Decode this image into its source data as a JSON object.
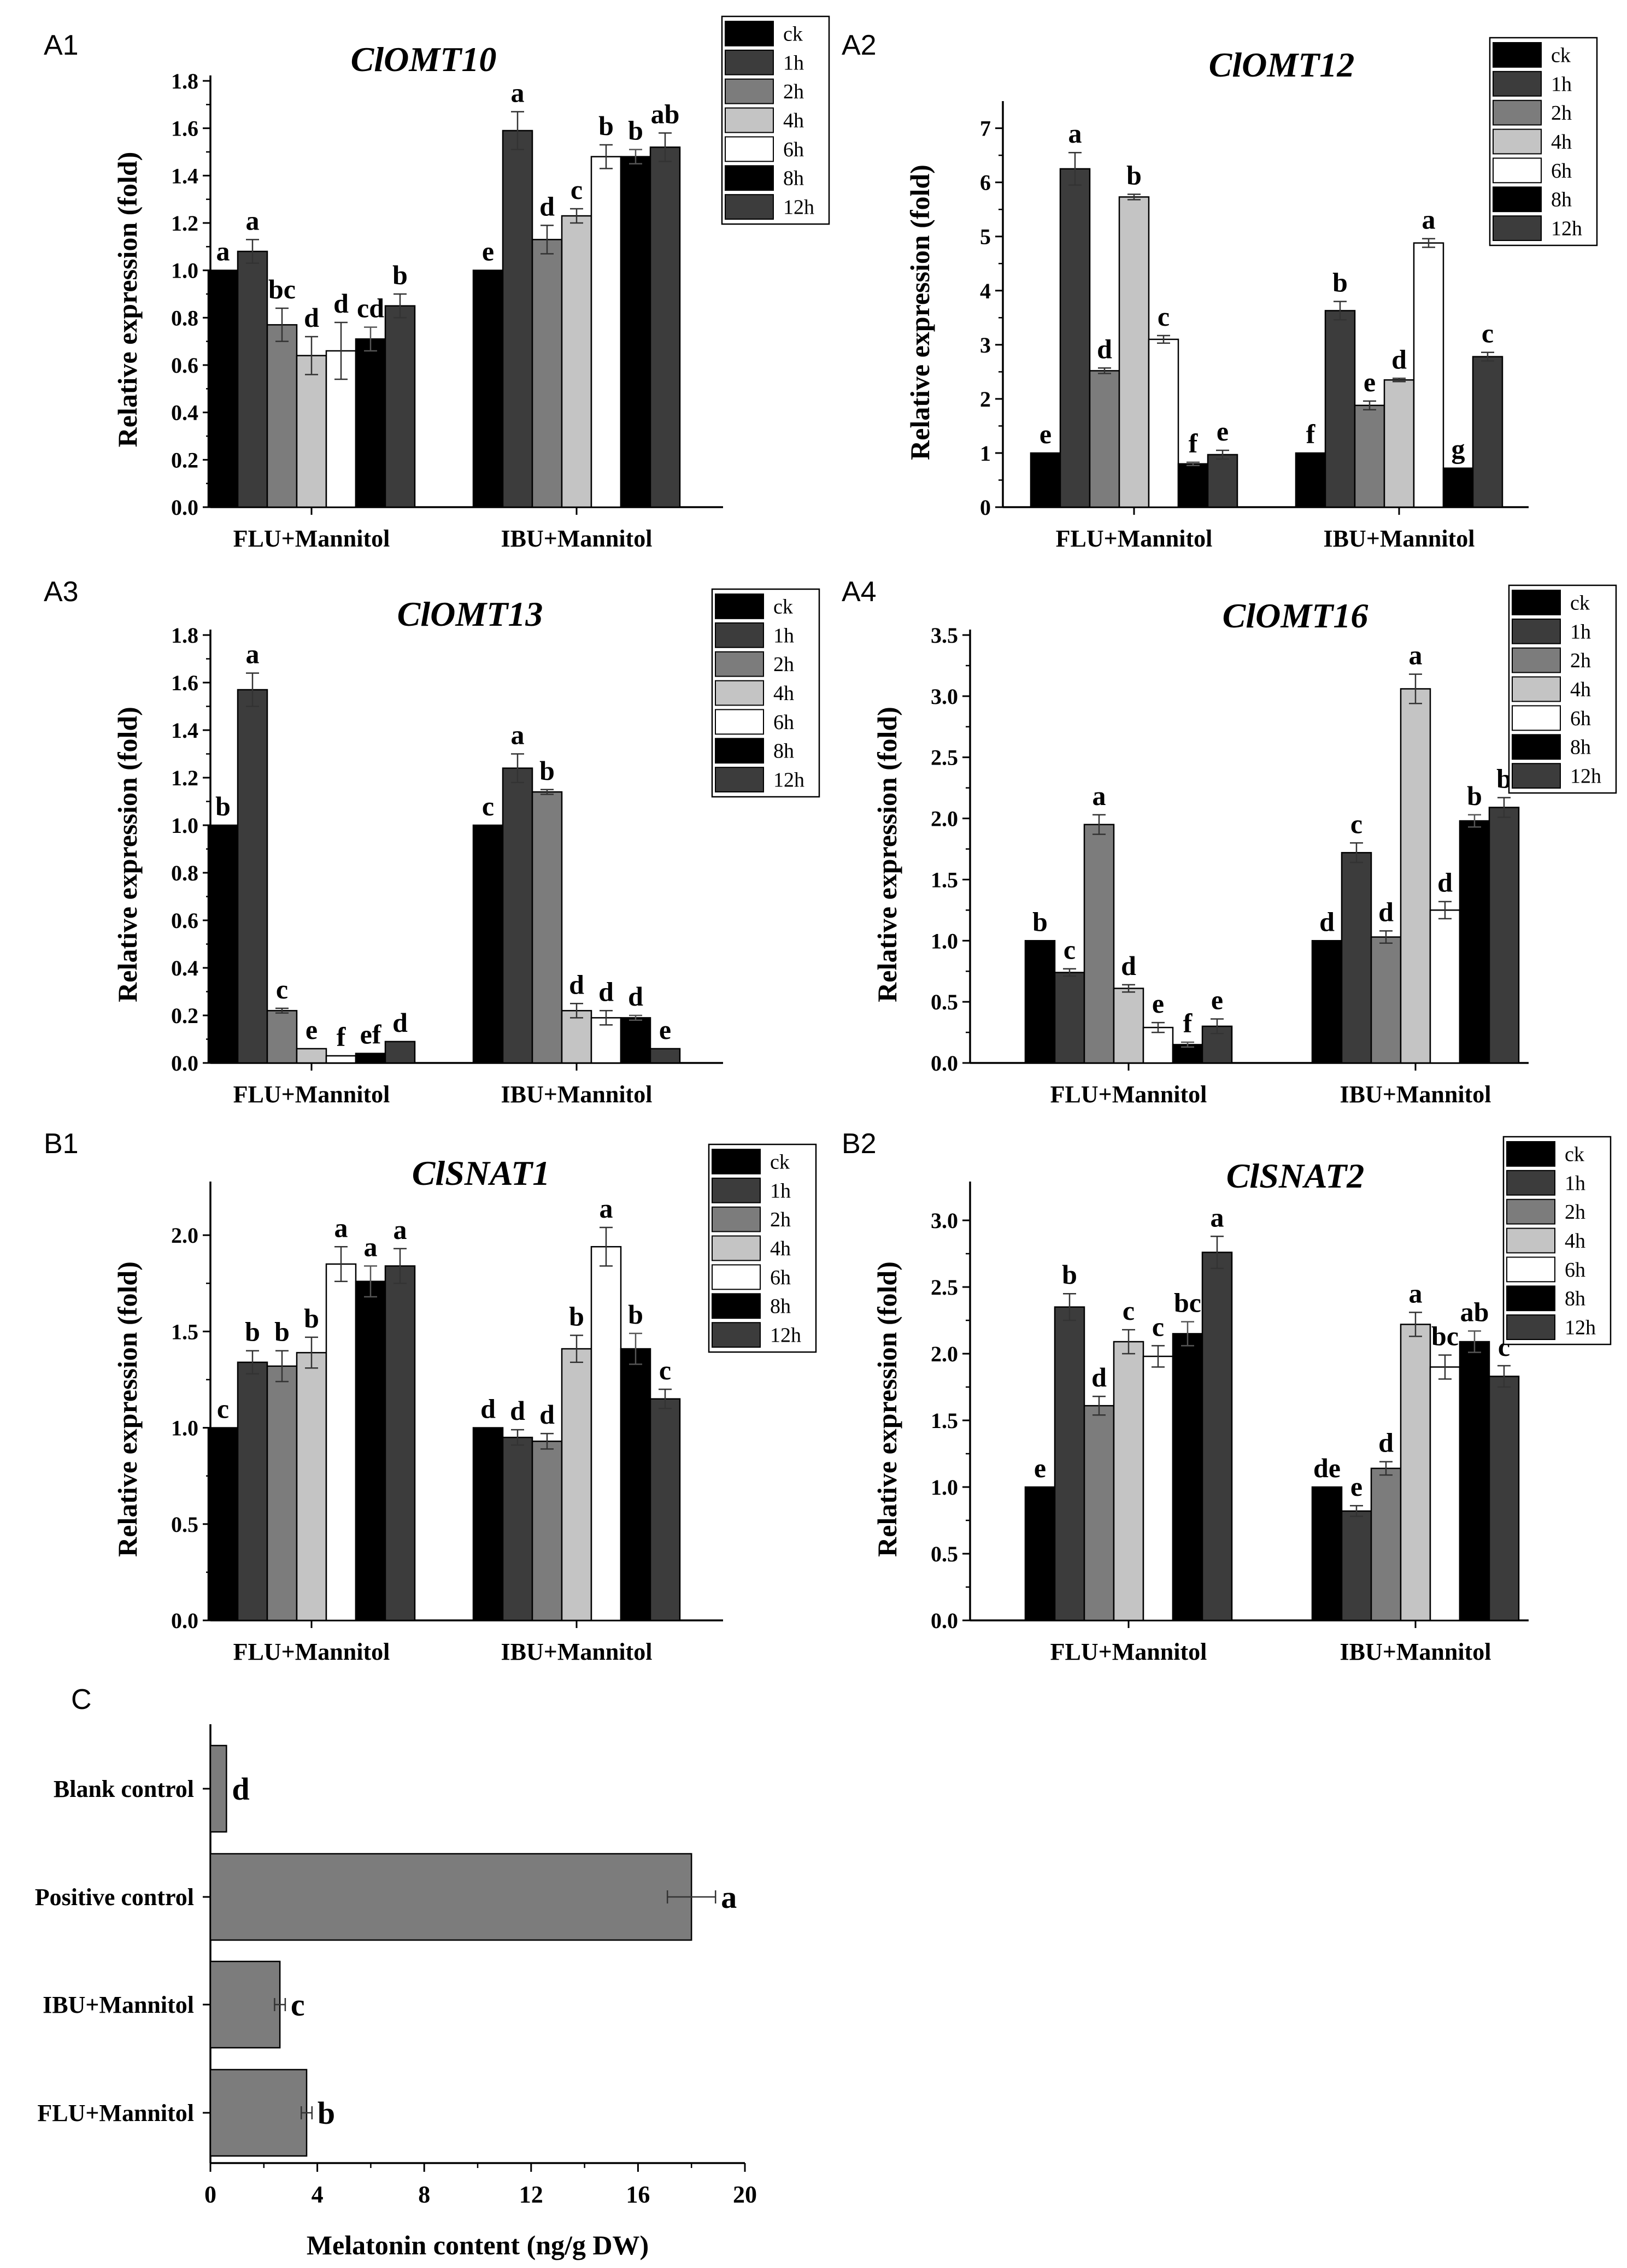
{
  "figure": {
    "legend_labels": [
      "ck",
      "1h",
      "2h",
      "4h",
      "6h",
      "8h",
      "12h"
    ],
    "colors": {
      "ck": "#000000",
      "1h": "#3c3c3c",
      "2h": "#7c7c7c",
      "4h": "#c4c4c4",
      "6h": "#ffffff",
      "8h": "#000000",
      "12h": "#3c3c3c",
      "bar_c": "#7c7c7c"
    },
    "ylabel": "Relative expression (fold)"
  },
  "chart_data": [
    {
      "id": "A1",
      "type": "bar",
      "title": "ClOMT10",
      "groups": [
        "FLU+Mannitol",
        "IBU+Mannitol"
      ],
      "ylim": [
        0,
        1.8
      ],
      "yticks": [
        "0.0",
        "0.2",
        "0.4",
        "0.6",
        "0.8",
        "1.0",
        "1.2",
        "1.4",
        "1.6",
        "1.8"
      ],
      "series": [
        {
          "name": "ck",
          "values": [
            1.0,
            1.0
          ],
          "errors": [
            0,
            0
          ],
          "letters": [
            "a",
            "e"
          ]
        },
        {
          "name": "1h",
          "values": [
            1.08,
            1.59
          ],
          "errors": [
            0.05,
            0.08
          ],
          "letters": [
            "a",
            "a"
          ]
        },
        {
          "name": "2h",
          "values": [
            0.77,
            1.13
          ],
          "errors": [
            0.07,
            0.06
          ],
          "letters": [
            "bc",
            "d"
          ]
        },
        {
          "name": "4h",
          "values": [
            0.64,
            1.23
          ],
          "errors": [
            0.08,
            0.03
          ],
          "letters": [
            "d",
            "c"
          ]
        },
        {
          "name": "6h",
          "values": [
            0.66,
            1.48
          ],
          "errors": [
            0.12,
            0.05
          ],
          "letters": [
            "d",
            "b"
          ]
        },
        {
          "name": "8h",
          "values": [
            0.71,
            1.48
          ],
          "errors": [
            0.05,
            0.03
          ],
          "letters": [
            "cd",
            "b"
          ]
        },
        {
          "name": "12h",
          "values": [
            0.85,
            1.52
          ],
          "errors": [
            0.05,
            0.06
          ],
          "letters": [
            "b",
            "ab"
          ]
        }
      ]
    },
    {
      "id": "A2",
      "type": "bar",
      "title": "ClOMT12",
      "groups": [
        "FLU+Mannitol",
        "IBU+Mannitol"
      ],
      "ylim": [
        0,
        7.4
      ],
      "yticks": [
        "0",
        "1",
        "2",
        "3",
        "4",
        "5",
        "6",
        "7"
      ],
      "series": [
        {
          "name": "ck",
          "values": [
            1.0,
            1.0
          ],
          "errors": [
            0,
            0
          ],
          "letters": [
            "e",
            "f"
          ]
        },
        {
          "name": "1h",
          "values": [
            6.25,
            3.63
          ],
          "errors": [
            0.3,
            0.17
          ],
          "letters": [
            "a",
            "b"
          ]
        },
        {
          "name": "2h",
          "values": [
            2.52,
            1.88
          ],
          "errors": [
            0.05,
            0.08
          ],
          "letters": [
            "d",
            "e"
          ]
        },
        {
          "name": "4h",
          "values": [
            5.73,
            2.35
          ],
          "errors": [
            0.05,
            0.03
          ],
          "letters": [
            "b",
            "d"
          ]
        },
        {
          "name": "6h",
          "values": [
            3.1,
            4.88
          ],
          "errors": [
            0.07,
            0.08
          ],
          "letters": [
            "c",
            "a"
          ]
        },
        {
          "name": "8h",
          "values": [
            0.8,
            0.72
          ],
          "errors": [
            0.03,
            0
          ],
          "letters": [
            "f",
            "g"
          ]
        },
        {
          "name": "12h",
          "values": [
            0.97,
            2.78
          ],
          "errors": [
            0.08,
            0.08
          ],
          "letters": [
            "e",
            "c"
          ]
        }
      ]
    },
    {
      "id": "A3",
      "type": "bar",
      "title": "ClOMT13",
      "groups": [
        "FLU+Mannitol",
        "IBU+Mannitol"
      ],
      "ylim": [
        0,
        1.8
      ],
      "yticks": [
        "0.0",
        "0.2",
        "0.4",
        "0.6",
        "0.8",
        "1.0",
        "1.2",
        "1.4",
        "1.6",
        "1.8"
      ],
      "series": [
        {
          "name": "ck",
          "values": [
            1.0,
            1.0
          ],
          "errors": [
            0,
            0
          ],
          "letters": [
            "b",
            "c"
          ]
        },
        {
          "name": "1h",
          "values": [
            1.57,
            1.24
          ],
          "errors": [
            0.07,
            0.06
          ],
          "letters": [
            "a",
            "a"
          ]
        },
        {
          "name": "2h",
          "values": [
            0.22,
            1.14
          ],
          "errors": [
            0.01,
            0.01
          ],
          "letters": [
            "c",
            "b"
          ]
        },
        {
          "name": "4h",
          "values": [
            0.06,
            0.22
          ],
          "errors": [
            0,
            0.03
          ],
          "letters": [
            "e",
            "d"
          ]
        },
        {
          "name": "6h",
          "values": [
            0.03,
            0.19
          ],
          "errors": [
            0,
            0.03
          ],
          "letters": [
            "f",
            "d"
          ]
        },
        {
          "name": "8h",
          "values": [
            0.04,
            0.19
          ],
          "errors": [
            0,
            0.01
          ],
          "letters": [
            "ef",
            "d"
          ]
        },
        {
          "name": "12h",
          "values": [
            0.09,
            0.06
          ],
          "errors": [
            0,
            0
          ],
          "letters": [
            "d",
            "e"
          ]
        }
      ]
    },
    {
      "id": "A4",
      "type": "bar",
      "title": "ClOMT16",
      "groups": [
        "FLU+Mannitol",
        "IBU+Mannitol"
      ],
      "ylim": [
        0,
        3.5
      ],
      "yticks": [
        "0.0",
        "0.5",
        "1.0",
        "1.5",
        "2.0",
        "2.5",
        "3.0",
        "3.5"
      ],
      "series": [
        {
          "name": "ck",
          "values": [
            1.0,
            1.0
          ],
          "errors": [
            0,
            0
          ],
          "letters": [
            "b",
            "d"
          ]
        },
        {
          "name": "1h",
          "values": [
            0.74,
            1.72
          ],
          "errors": [
            0.03,
            0.08
          ],
          "letters": [
            "c",
            "c"
          ]
        },
        {
          "name": "2h",
          "values": [
            1.95,
            1.03
          ],
          "errors": [
            0.08,
            0.05
          ],
          "letters": [
            "a",
            "d"
          ]
        },
        {
          "name": "4h",
          "values": [
            0.61,
            3.06
          ],
          "errors": [
            0.03,
            0.12
          ],
          "letters": [
            "d",
            "a"
          ]
        },
        {
          "name": "6h",
          "values": [
            0.29,
            1.25
          ],
          "errors": [
            0.04,
            0.07
          ],
          "letters": [
            "e",
            "d"
          ]
        },
        {
          "name": "8h",
          "values": [
            0.15,
            1.98
          ],
          "errors": [
            0.02,
            0.05
          ],
          "letters": [
            "f",
            "b"
          ]
        },
        {
          "name": "12h",
          "values": [
            0.3,
            2.09
          ],
          "errors": [
            0.06,
            0.08
          ],
          "letters": [
            "e",
            "b"
          ]
        }
      ]
    },
    {
      "id": "B1",
      "type": "bar",
      "title": "ClSNAT1",
      "groups": [
        "FLU+Mannitol",
        "IBU+Mannitol"
      ],
      "ylim": [
        0,
        2.25
      ],
      "yticks": [
        "0.0",
        "0.5",
        "1.0",
        "1.5",
        "2.0"
      ],
      "series": [
        {
          "name": "ck",
          "values": [
            1.0,
            1.0
          ],
          "errors": [
            0,
            0
          ],
          "letters": [
            "c",
            "d"
          ]
        },
        {
          "name": "1h",
          "values": [
            1.34,
            0.95
          ],
          "errors": [
            0.06,
            0.04
          ],
          "letters": [
            "b",
            "d"
          ]
        },
        {
          "name": "2h",
          "values": [
            1.32,
            0.93
          ],
          "errors": [
            0.08,
            0.04
          ],
          "letters": [
            "b",
            "d"
          ]
        },
        {
          "name": "4h",
          "values": [
            1.39,
            1.41
          ],
          "errors": [
            0.08,
            0.07
          ],
          "letters": [
            "b",
            "b"
          ]
        },
        {
          "name": "6h",
          "values": [
            1.85,
            1.94
          ],
          "errors": [
            0.09,
            0.1
          ],
          "letters": [
            "a",
            "a"
          ]
        },
        {
          "name": "8h",
          "values": [
            1.76,
            1.41
          ],
          "errors": [
            0.08,
            0.08
          ],
          "letters": [
            "a",
            "b"
          ]
        },
        {
          "name": "12h",
          "values": [
            1.84,
            1.15
          ],
          "errors": [
            0.09,
            0.05
          ],
          "letters": [
            "a",
            "c"
          ]
        }
      ]
    },
    {
      "id": "B2",
      "type": "bar",
      "title": "ClSNAT2",
      "groups": [
        "FLU+Mannitol",
        "IBU+Mannitol"
      ],
      "ylim": [
        0,
        3.25
      ],
      "yticks": [
        "0.0",
        "0.5",
        "1.0",
        "1.5",
        "2.0",
        "2.5",
        "3.0"
      ],
      "series": [
        {
          "name": "ck",
          "values": [
            1.0,
            1.0
          ],
          "errors": [
            0,
            0
          ],
          "letters": [
            "e",
            "de"
          ]
        },
        {
          "name": "1h",
          "values": [
            2.35,
            0.82
          ],
          "errors": [
            0.1,
            0.04
          ],
          "letters": [
            "b",
            "e"
          ]
        },
        {
          "name": "2h",
          "values": [
            1.61,
            1.14
          ],
          "errors": [
            0.07,
            0.05
          ],
          "letters": [
            "d",
            "d"
          ]
        },
        {
          "name": "4h",
          "values": [
            2.09,
            2.22
          ],
          "errors": [
            0.09,
            0.09
          ],
          "letters": [
            "c",
            "a"
          ]
        },
        {
          "name": "6h",
          "values": [
            1.98,
            1.9
          ],
          "errors": [
            0.08,
            0.09
          ],
          "letters": [
            "c",
            "bc"
          ]
        },
        {
          "name": "8h",
          "values": [
            2.15,
            2.09
          ],
          "errors": [
            0.09,
            0.08
          ],
          "letters": [
            "bc",
            "ab"
          ]
        },
        {
          "name": "12h",
          "values": [
            2.76,
            1.83
          ],
          "errors": [
            0.12,
            0.08
          ],
          "letters": [
            "a",
            "c"
          ]
        }
      ]
    },
    {
      "id": "C",
      "type": "bar",
      "orientation": "horizontal",
      "xlabel": "Melatonin content (ng/g DW)",
      "xlim": [
        0,
        20
      ],
      "xticks": [
        "0",
        "4",
        "8",
        "12",
        "16",
        "20"
      ],
      "categories": [
        "Blank control",
        "Positive control",
        "IBU+Mannitol",
        "FLU+Mannitol"
      ],
      "values": [
        0.6,
        18.0,
        2.6,
        3.6
      ],
      "errors": [
        0,
        0.9,
        0.2,
        0.2
      ],
      "letters": [
        "d",
        "a",
        "c",
        "b"
      ]
    }
  ]
}
